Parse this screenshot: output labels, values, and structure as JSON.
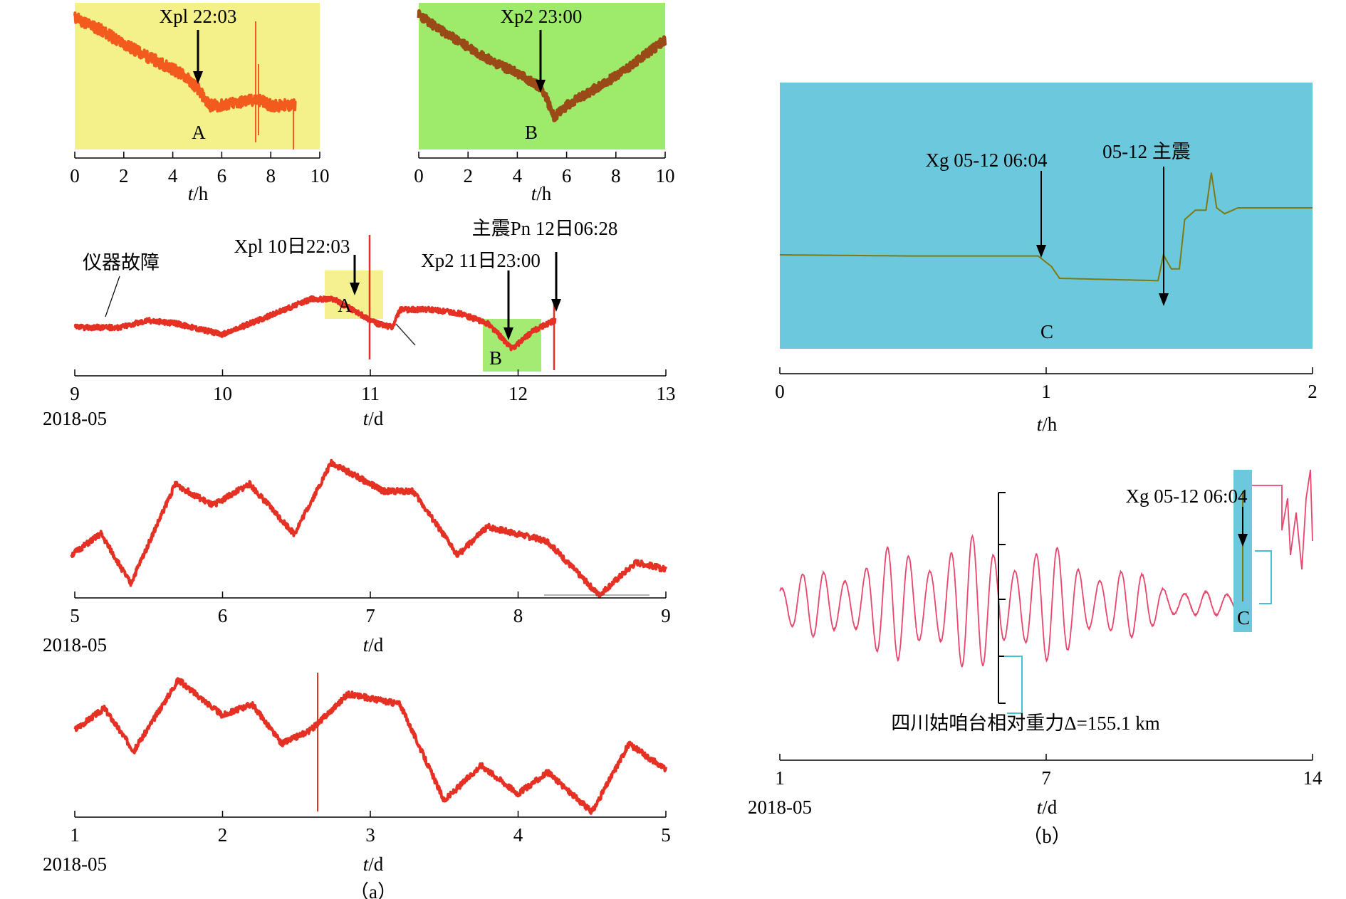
{
  "caption_a": "（a）",
  "caption_b": "（b）",
  "colors": {
    "yellow_box": "#f4f08a",
    "green_box": "#9eea6a",
    "cyan_panel": "#6cc8dc",
    "red_trace": "#e53024",
    "orange_trace": "#f25a1e",
    "brown_trace": "#9a4a16",
    "pink_trace": "#e8466e",
    "olive_trace": "#7f7a10"
  },
  "chart_data": [
    {
      "id": "a-inset-A",
      "type": "line",
      "panel": "a",
      "x_ticks": [
        "0",
        "2",
        "4",
        "6",
        "8",
        "10"
      ],
      "xlabel": "t/h",
      "xlim": [
        0,
        10
      ],
      "background": "yellow",
      "annotation": {
        "text": "Xpl 22:03",
        "x": 5.0
      },
      "point_label": "A",
      "series": [
        {
          "x": [
            0,
            1,
            2,
            3,
            4,
            4.5,
            5,
            5.5,
            6,
            7,
            7.5,
            8,
            9
          ],
          "values": [
            0.9,
            0.82,
            0.72,
            0.63,
            0.55,
            0.5,
            0.42,
            0.3,
            0.3,
            0.33,
            0.34,
            0.3,
            0.3
          ]
        }
      ]
    },
    {
      "id": "a-inset-B",
      "type": "line",
      "panel": "a",
      "x_ticks": [
        "0",
        "2",
        "4",
        "6",
        "8",
        "10"
      ],
      "xlabel": "t/h",
      "xlim": [
        0,
        10
      ],
      "background": "green",
      "annotation": {
        "text": "Xp2 23:00",
        "x": 5.0
      },
      "point_label": "B",
      "series": [
        {
          "x": [
            0,
            1,
            2,
            3,
            4,
            5,
            5.5,
            6,
            7,
            8,
            9,
            10
          ],
          "values": [
            0.92,
            0.8,
            0.7,
            0.6,
            0.52,
            0.42,
            0.22,
            0.3,
            0.4,
            0.5,
            0.62,
            0.75
          ]
        }
      ]
    },
    {
      "id": "a-row2",
      "type": "line",
      "panel": "a",
      "x_ticks": [
        "9",
        "10",
        "11",
        "12",
        "13"
      ],
      "xlim": [
        9,
        13
      ],
      "date_label": "2018-05",
      "xlabel": "t/d",
      "annotations": [
        {
          "text": "仪器故障",
          "x": 9.2
        },
        {
          "text": "Xpl 10日22:03",
          "x": 10.92
        },
        {
          "text": "Xp2 11日23:00",
          "x": 11.96
        },
        {
          "text": "主震Pn 12日06:28",
          "x": 12.27
        }
      ],
      "point_labels": [
        "A",
        "B"
      ],
      "series": [
        {
          "x": [
            9,
            9.3,
            9.5,
            9.7,
            10,
            10.3,
            10.6,
            10.75,
            10.92,
            11.05,
            11.15,
            11.2,
            11.4,
            11.6,
            11.8,
            11.96,
            12.1,
            12.25
          ],
          "values": [
            0.1,
            0.1,
            0.2,
            0.15,
            0.0,
            0.25,
            0.5,
            0.5,
            0.3,
            0.15,
            0.1,
            0.35,
            0.35,
            0.3,
            0.15,
            -0.2,
            0.05,
            0.2
          ]
        }
      ]
    },
    {
      "id": "a-row3",
      "type": "line",
      "panel": "a",
      "x_ticks": [
        "5",
        "6",
        "7",
        "8",
        "9"
      ],
      "xlim": [
        5,
        9
      ],
      "date_label": "2018-05",
      "xlabel": "t/d",
      "series": [
        {
          "x": [
            5,
            5.2,
            5.4,
            5.7,
            5.95,
            6.2,
            6.5,
            6.75,
            7.1,
            7.3,
            7.6,
            7.8,
            8.2,
            8.55,
            8.8,
            9
          ],
          "values": [
            0.3,
            0.45,
            0.1,
            0.8,
            0.65,
            0.8,
            0.45,
            0.95,
            0.75,
            0.75,
            0.3,
            0.5,
            0.4,
            0.02,
            0.25,
            0.2
          ]
        }
      ]
    },
    {
      "id": "a-row4",
      "type": "line",
      "panel": "a",
      "x_ticks": [
        "1",
        "2",
        "3",
        "4",
        "5"
      ],
      "xlim": [
        1,
        5
      ],
      "date_label": "2018-05",
      "xlabel": "t/d",
      "series": [
        {
          "x": [
            1,
            1.2,
            1.4,
            1.7,
            2,
            2.2,
            2.4,
            2.6,
            2.85,
            3.2,
            3.5,
            3.75,
            4,
            4.2,
            4.5,
            4.75,
            5
          ],
          "values": [
            0.6,
            0.75,
            0.45,
            0.95,
            0.7,
            0.78,
            0.5,
            0.6,
            0.85,
            0.78,
            0.1,
            0.35,
            0.15,
            0.3,
            0.02,
            0.5,
            0.32
          ]
        }
      ]
    },
    {
      "id": "b-top",
      "type": "line",
      "panel": "b",
      "x_ticks": [
        "0",
        "1",
        "2"
      ],
      "xlim": [
        0,
        2
      ],
      "xlabel": "t/h",
      "background": "cyan",
      "annotations": [
        {
          "text": "Xg 05-12 06:04",
          "x": 1.0
        },
        {
          "text": "05-12 主震",
          "x": 1.42
        }
      ],
      "point_label": "C",
      "series": [
        {
          "x": [
            0,
            0.5,
            0.97,
            1.02,
            1.05,
            1.42,
            1.44,
            1.47,
            1.5,
            1.52,
            1.56,
            1.6,
            1.62,
            1.64,
            1.67,
            1.72,
            2
          ],
          "values": [
            0.0,
            -0.01,
            -0.01,
            -0.1,
            -0.2,
            -0.22,
            0.0,
            -0.12,
            -0.12,
            0.3,
            0.38,
            0.38,
            0.7,
            0.4,
            0.35,
            0.4,
            0.4
          ]
        }
      ]
    },
    {
      "id": "b-bottom",
      "type": "line",
      "panel": "b",
      "x_ticks": [
        "1",
        "7",
        "14"
      ],
      "xlim": [
        1,
        14
      ],
      "date_label": "2018-05",
      "xlabel": "t/d",
      "annotations": [
        {
          "text": "Xg 05-12 06:04",
          "x": 12.25
        },
        {
          "text": "四川姑咱台相对重力Δ=155.1 km"
        }
      ],
      "point_label": "C",
      "series": [
        {
          "note": "semi-diurnal tidal oscillation, 1-14 May 2018"
        }
      ]
    }
  ]
}
